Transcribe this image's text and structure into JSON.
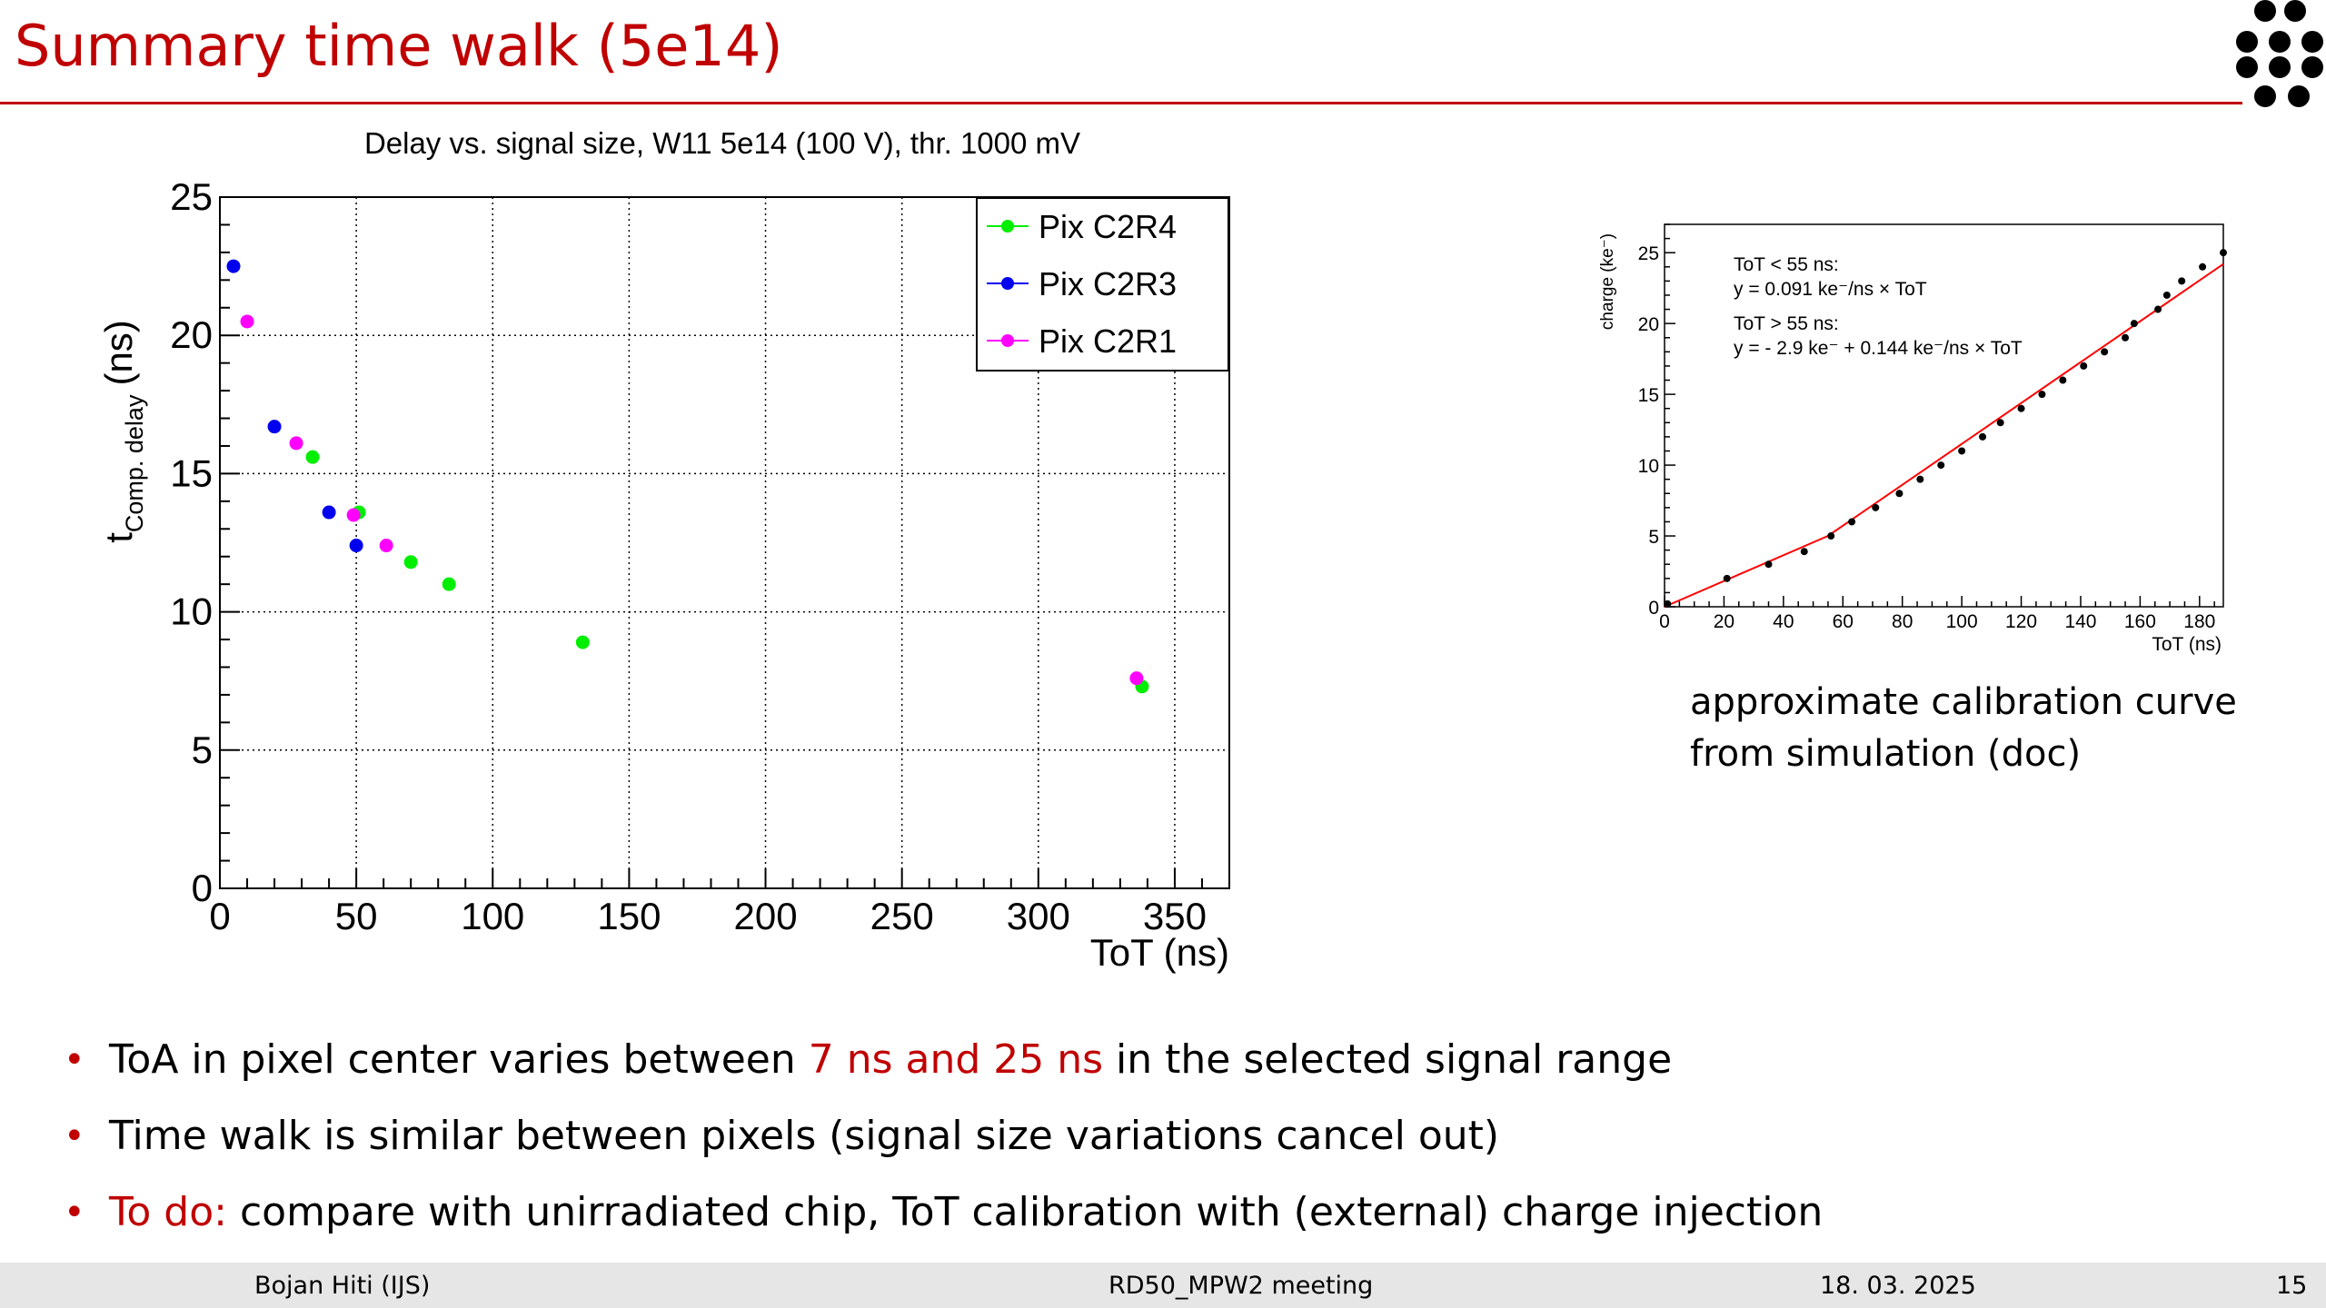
{
  "slide": {
    "title": "Summary time walk (5e14)",
    "accent_color": "#c00000"
  },
  "logo": {
    "icon": "dots-logo-icon"
  },
  "chart_data": [
    {
      "type": "scatter",
      "title": "Delay vs. signal size, W11 5e14 (100 V), thr. 1000 mV",
      "xlabel": "ToT (ns)",
      "ylabel_main": "t",
      "ylabel_sub": "Comp. delay",
      "ylabel_unit": "(ns)",
      "xlim": [
        0,
        370
      ],
      "ylim": [
        0,
        25
      ],
      "xticks": [
        0,
        50,
        100,
        150,
        200,
        250,
        300,
        350
      ],
      "yticks": [
        0,
        5,
        10,
        15,
        20,
        25
      ],
      "grid": true,
      "legend_position": "top-right",
      "series": [
        {
          "name": "Pix C2R4",
          "color": "#00ee00",
          "points": [
            [
              34,
              15.6
            ],
            [
              51,
              13.6
            ],
            [
              70,
              11.8
            ],
            [
              84,
              11.0
            ],
            [
              133,
              8.9
            ],
            [
              338,
              7.3
            ]
          ]
        },
        {
          "name": "Pix C2R3",
          "color": "#0000ee",
          "points": [
            [
              5,
              22.5
            ],
            [
              20,
              16.7
            ],
            [
              40,
              13.6
            ],
            [
              50,
              12.4
            ]
          ]
        },
        {
          "name": "Pix C2R1",
          "color": "#ff00ff",
          "points": [
            [
              10,
              20.5
            ],
            [
              28,
              16.1
            ],
            [
              49,
              13.5
            ],
            [
              61,
              12.4
            ],
            [
              336,
              7.6
            ]
          ]
        }
      ]
    },
    {
      "type": "scatter",
      "title": "",
      "xlabel": "ToT (ns)",
      "ylabel": "charge (ke⁻)",
      "xlim": [
        0,
        188
      ],
      "ylim": [
        0,
        27
      ],
      "xticks": [
        0,
        20,
        40,
        60,
        80,
        100,
        120,
        140,
        160,
        180
      ],
      "yticks": [
        0,
        5,
        10,
        15,
        20,
        25
      ],
      "grid": false,
      "annotations": [
        "ToT < 55 ns:",
        "y = 0.091 ke⁻/ns × ToT",
        "ToT > 55 ns:",
        "y = - 2.9 ke⁻ + 0.144 ke⁻/ns × ToT"
      ],
      "fit_color": "#ff0000",
      "fit_segments": [
        [
          0,
          0
        ],
        [
          55,
          5.0
        ],
        [
          188,
          24.2
        ]
      ],
      "points": [
        [
          1,
          0.2
        ],
        [
          21,
          2.0
        ],
        [
          35,
          3.0
        ],
        [
          47,
          3.9
        ],
        [
          56,
          5.0
        ],
        [
          63,
          6.0
        ],
        [
          71,
          7.0
        ],
        [
          79,
          8.0
        ],
        [
          86,
          9.0
        ],
        [
          93,
          10.0
        ],
        [
          100,
          11.0
        ],
        [
          107,
          12.0
        ],
        [
          113,
          13.0
        ],
        [
          120,
          14.0
        ],
        [
          127,
          15.0
        ],
        [
          134,
          16.0
        ],
        [
          141,
          17.0
        ],
        [
          148,
          18.0
        ],
        [
          155,
          19.0
        ],
        [
          158,
          20.0
        ],
        [
          166,
          21.0
        ],
        [
          169,
          22.0
        ],
        [
          174,
          23.0
        ],
        [
          181,
          24.0
        ],
        [
          188,
          25.0
        ]
      ]
    }
  ],
  "calibration_caption": "approximate calibration curve from simulation (doc)",
  "bullets": [
    {
      "pre": "ToA in pixel center varies between ",
      "red": "7 ns and 25 ns",
      "post": " in the selected signal range"
    },
    {
      "pre": "Time walk is similar between pixels (signal size variations cancel out)",
      "red": "",
      "post": ""
    },
    {
      "pre": "",
      "red": "To do:",
      "post": " compare with unirradiated chip, ToT calibration with (external) charge injection"
    }
  ],
  "footer": {
    "author": "Bojan Hiti (IJS)",
    "meeting": "RD50_MPW2 meeting",
    "date": "18. 03. 2025",
    "page": "15"
  }
}
